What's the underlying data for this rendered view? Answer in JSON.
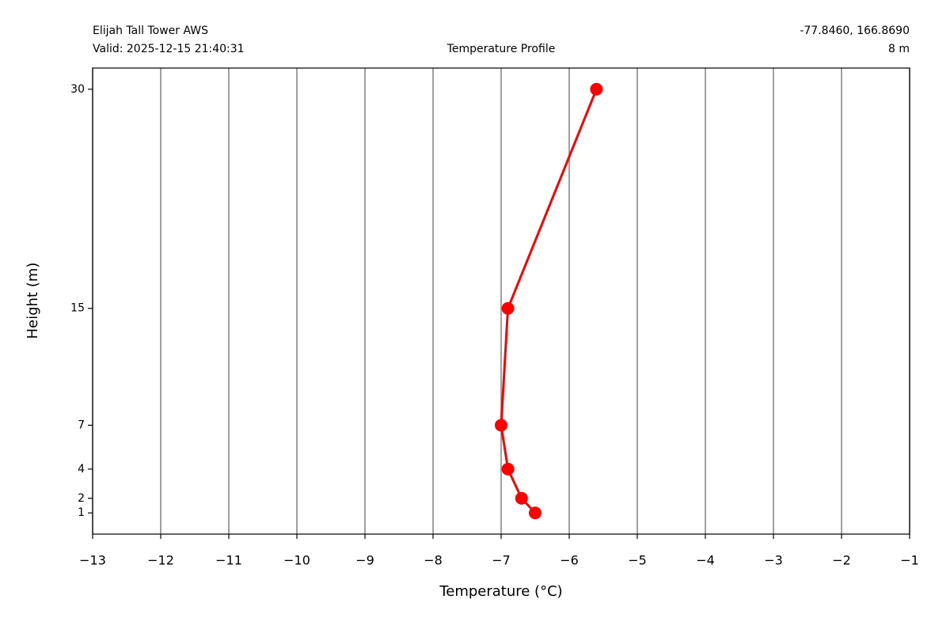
{
  "chart_data": {
    "type": "line",
    "title": "Temperature Profile",
    "station": "Elijah Tall Tower AWS",
    "valid": "Valid: 2025-12-15 21:40:31",
    "coordinates": "-77.8460, 166.8690",
    "elevation": "8 m",
    "x_label": "Temperature (°C)",
    "y_label": "Height (m)",
    "values": [
      -6.5,
      -6.7,
      -6.9,
      -7.0,
      -6.9,
      -5.6
    ],
    "y": [
      1,
      2,
      4,
      7,
      15,
      30
    ],
    "color": "#ff0000",
    "xlim": [
      -13,
      -1
    ],
    "xticks": [
      {
        "value": -13,
        "label": "−13"
      },
      {
        "value": -12,
        "label": "−12"
      },
      {
        "value": -11,
        "label": "−11"
      },
      {
        "value": -10,
        "label": "−10"
      },
      {
        "value": -9,
        "label": "−9"
      },
      {
        "value": -8,
        "label": "−8"
      },
      {
        "value": -7,
        "label": "−7"
      },
      {
        "value": -6,
        "label": "−6"
      },
      {
        "value": -5,
        "label": "−5"
      },
      {
        "value": -4,
        "label": "−4"
      },
      {
        "value": -3,
        "label": "−3"
      },
      {
        "value": -2,
        "label": "−2"
      },
      {
        "value": -1,
        "label": "−1"
      }
    ],
    "ylim": [
      -0.45,
      31.45
    ],
    "yticks": [
      1,
      2,
      4,
      7,
      15,
      30
    ],
    "grid": "x"
  }
}
